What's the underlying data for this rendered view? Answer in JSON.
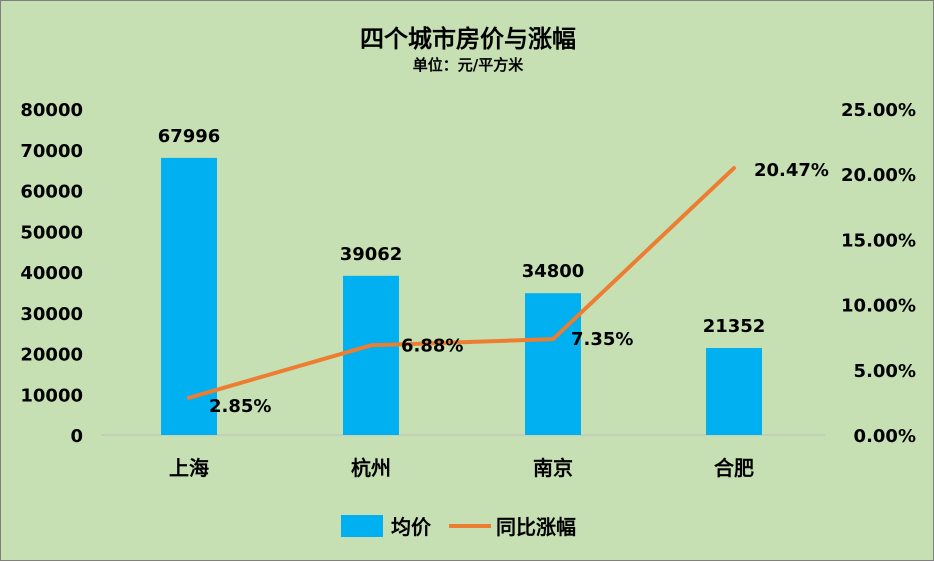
{
  "chart_data": {
    "type": "bar",
    "title": "四个城市房价与涨幅",
    "subtitle": "单位：元/平方米",
    "categories": [
      "上海",
      "杭州",
      "南京",
      "合肥"
    ],
    "series": [
      {
        "name": "均价",
        "type": "bar",
        "axis": "left",
        "color": "#00b0f0",
        "values": [
          67996,
          39062,
          34800,
          21352
        ],
        "labels": [
          "67996",
          "39062",
          "34800",
          "21352"
        ]
      },
      {
        "name": "同比涨幅",
        "type": "line",
        "axis": "right",
        "color": "#ed7d31",
        "values": [
          2.85,
          6.88,
          7.35,
          20.47
        ],
        "labels": [
          "2.85%",
          "6.88%",
          "7.35%",
          "20.47%"
        ]
      }
    ],
    "y_left": {
      "range": [
        0,
        80000
      ],
      "ticks": [
        "0",
        "10000",
        "20000",
        "30000",
        "40000",
        "50000",
        "60000",
        "70000",
        "80000"
      ]
    },
    "y_right": {
      "range": [
        0,
        25
      ],
      "ticks": [
        "0.00%",
        "5.00%",
        "10.00%",
        "15.00%",
        "20.00%",
        "25.00%"
      ]
    },
    "grid": false,
    "legend": "bottom",
    "background": "#c6e0b4"
  }
}
